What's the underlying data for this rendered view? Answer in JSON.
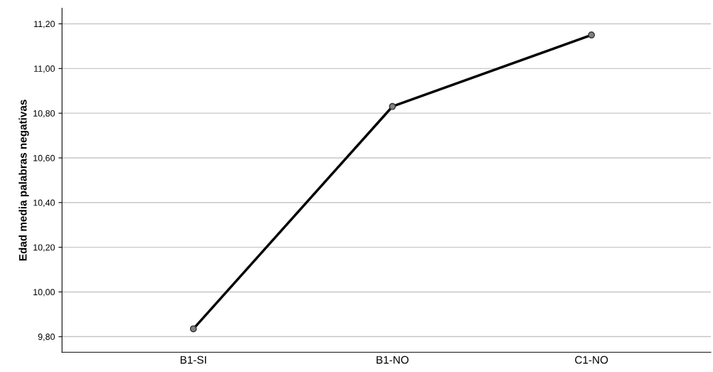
{
  "chart_data": {
    "type": "line",
    "ylabel": "Edad media palabras negativas",
    "categories": [
      "B1-SI",
      "B1-NO",
      "C1-NO"
    ],
    "series": [
      {
        "color": "#000000",
        "values": [
          9.835,
          10.83,
          11.15
        ]
      }
    ],
    "ylim": [
      9.73,
      11.27
    ],
    "yticks": [
      {
        "value": 9.8,
        "label": "9,80"
      },
      {
        "value": 10.0,
        "label": "10,00"
      },
      {
        "value": 10.2,
        "label": "10,20"
      },
      {
        "value": 10.4,
        "label": "10,40"
      },
      {
        "value": 10.6,
        "label": "10,60"
      },
      {
        "value": 10.8,
        "label": "10,80"
      },
      {
        "value": 11.0,
        "label": "11,00"
      },
      {
        "value": 11.2,
        "label": "11,20"
      }
    ],
    "grid": "y",
    "marker": "circle",
    "line_style": "solid"
  }
}
